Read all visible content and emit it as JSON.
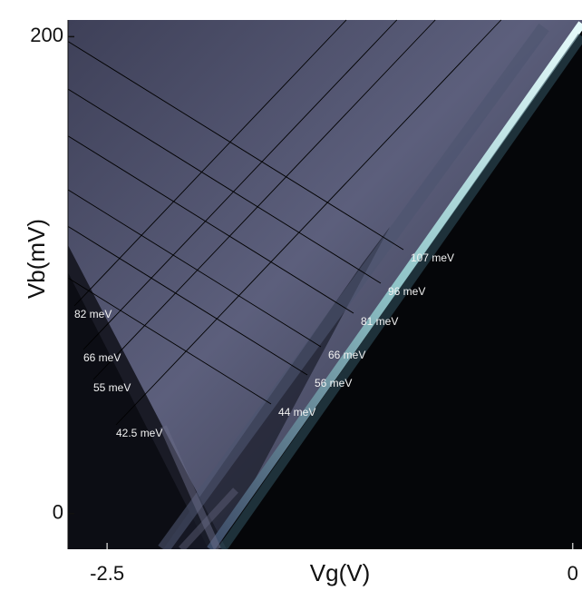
{
  "chart_data": {
    "type": "heatmap",
    "xlabel": "Vg(V)",
    "ylabel": "Vb(mV)",
    "xlim": [
      -2.71,
      0.05
    ],
    "ylim": [
      -15,
      207
    ],
    "xticks": [
      -2.5,
      0
    ],
    "yticks": [
      0,
      200
    ],
    "annotations": [
      "107 meV",
      "96 meV",
      "81 meV",
      "66 meV",
      "56 meV",
      "44 meV",
      "82 meV",
      "66 meV",
      "55 meV",
      "42.5 meV"
    ]
  }
}
